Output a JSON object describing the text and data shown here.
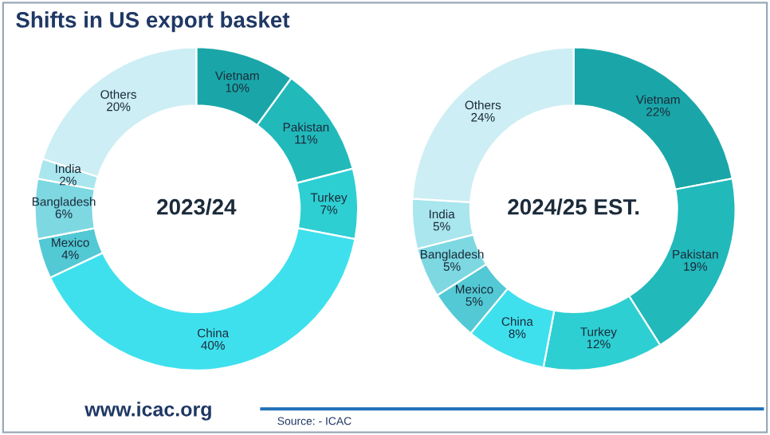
{
  "chart_data": [
    {
      "type": "donut",
      "title": "Shifts in US export basket",
      "subtitle": "2023/24",
      "categories": [
        "Vietnam",
        "Pakistan",
        "Turkey",
        "China",
        "Mexico",
        "Bangladesh",
        "India",
        "Others"
      ],
      "values": [
        10,
        11,
        7,
        40,
        4,
        6,
        2,
        20
      ],
      "colors": [
        "#1aa6a8",
        "#22b9bb",
        "#2dcfd2",
        "#3fe0ee",
        "#52c9d4",
        "#7dd8e2",
        "#a9e6ee",
        "#cdeef4"
      ],
      "value_labels": [
        "10%",
        "11%",
        "7%",
        "40%",
        "4%",
        "6%",
        "2%",
        "20%"
      ]
    },
    {
      "type": "donut",
      "subtitle": "2024/25 EST.",
      "categories": [
        "Vietnam",
        "Pakistan",
        "Turkey",
        "China",
        "Mexico",
        "Bangladesh",
        "India",
        "Others"
      ],
      "values": [
        22,
        19,
        12,
        8,
        5,
        5,
        5,
        24
      ],
      "colors": [
        "#1aa6a8",
        "#22b9bb",
        "#2dcfd2",
        "#3fe0ee",
        "#52c9d4",
        "#7dd8e2",
        "#a9e6ee",
        "#cdeef4"
      ],
      "value_labels": [
        "22%",
        "19%",
        "12%",
        "8%",
        "5%",
        "5%",
        "5%",
        "24%"
      ],
      "annotations": [
        "www.icac.org",
        "Source: - ICAC"
      ]
    }
  ]
}
